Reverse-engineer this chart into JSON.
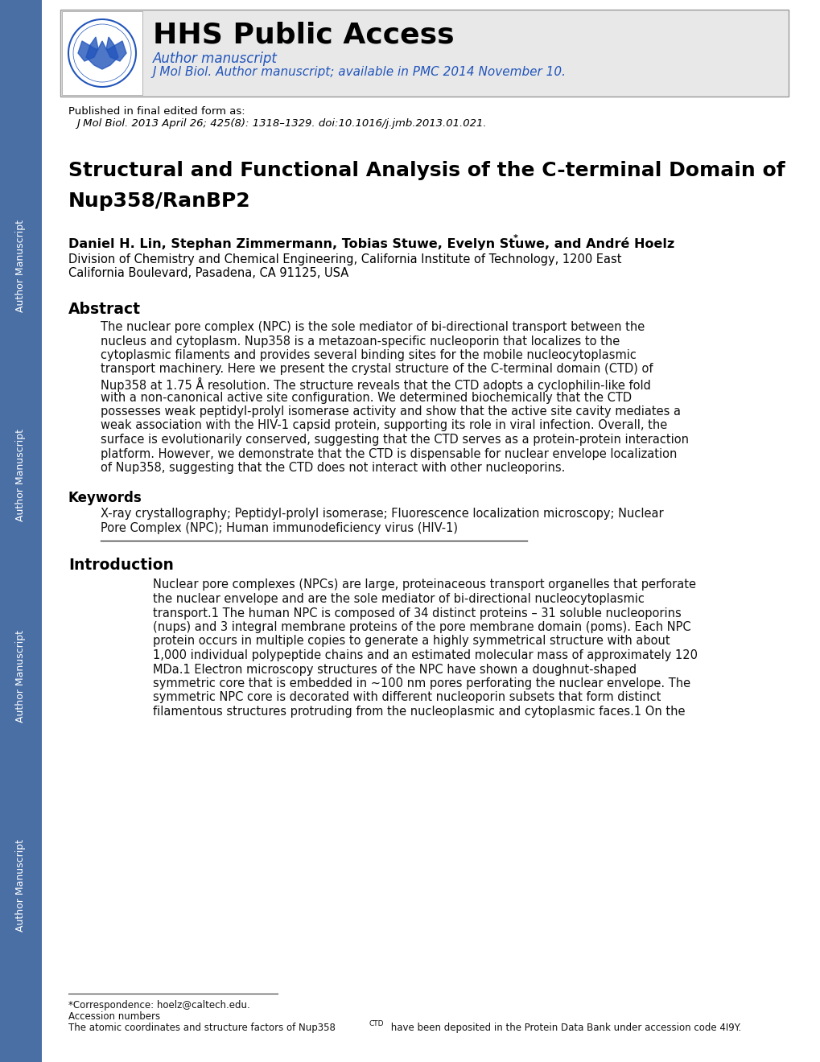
{
  "page_bg": "#ffffff",
  "left_bar_color": "#4a6fa5",
  "header_bg": "#e8e8e8",
  "header_border_color": "#999999",
  "header_title": "HHS Public Access",
  "header_subtitle": "Author manuscript",
  "header_journal_line": "J Mol Biol. Author manuscript; available in PMC 2014 November 10.",
  "header_title_color": "#000000",
  "header_subtitle_color": "#2255bb",
  "header_journal_color": "#2255bb",
  "published_line1": "Published in final edited form as:",
  "published_line2": "J Mol Biol. 2013 April 26; 425(8): 1318–1329. doi:10.1016/j.jmb.2013.01.021.",
  "title_line1": "Structural and Functional Analysis of the C-terminal Domain of",
  "title_line2": "Nup358/RanBP2",
  "authors": "Daniel H. Lin, Stephan Zimmermann, Tobias Stuwe, Evelyn Stuwe, and André Hoelz",
  "affil1": "Division of Chemistry and Chemical Engineering, California Institute of Technology, 1200 East",
  "affil2": "California Boulevard, Pasadena, CA 91125, USA",
  "abstract_title": "Abstract",
  "abstract_lines": [
    "The nuclear pore complex (NPC) is the sole mediator of bi-directional transport between the",
    "nucleus and cytoplasm. Nup358 is a metazoan-specific nucleoporin that localizes to the",
    "cytoplasmic filaments and provides several binding sites for the mobile nucleocytoplasmic",
    "transport machinery. Here we present the crystal structure of the C-terminal domain (CTD) of",
    "Nup358 at 1.75 Å resolution. The structure reveals that the CTD adopts a cyclophilin-like fold",
    "with a non-canonical active site configuration. We determined biochemically that the CTD",
    "possesses weak peptidyl-prolyl isomerase activity and show that the active site cavity mediates a",
    "weak association with the HIV-1 capsid protein, supporting its role in viral infection. Overall, the",
    "surface is evolutionarily conserved, suggesting that the CTD serves as a protein-protein interaction",
    "platform. However, we demonstrate that the CTD is dispensable for nuclear envelope localization",
    "of Nup358, suggesting that the CTD does not interact with other nucleoporins."
  ],
  "keywords_title": "Keywords",
  "keywords_lines": [
    "X-ray crystallography; Peptidyl-prolyl isomerase; Fluorescence localization microscopy; Nuclear",
    "Pore Complex (NPC); Human immunodeficiency virus (HIV-1)"
  ],
  "intro_title": "Introduction",
  "intro_lines": [
    "Nuclear pore complexes (NPCs) are large, proteinaceous transport organelles that perforate",
    "the nuclear envelope and are the sole mediator of bi-directional nucleocytoplasmic",
    "transport.1 The human NPC is composed of 34 distinct proteins – 31 soluble nucleoporins",
    "(nups) and 3 integral membrane proteins of the pore membrane domain (poms). Each NPC",
    "protein occurs in multiple copies to generate a highly symmetrical structure with about",
    "1,000 individual polypeptide chains and an estimated molecular mass of approximately 120",
    "MDa.1 Electron microscopy structures of the NPC have shown a doughnut-shaped",
    "symmetric core that is embedded in ~100 nm pores perforating the nuclear envelope. The",
    "symmetric NPC core is decorated with different nucleoporin subsets that form distinct",
    "filamentous structures protruding from the nucleoplasmic and cytoplasmic faces.1 On the"
  ],
  "footnote_corr": "*Correspondence: hoelz@caltech.edu.",
  "footnote_acc": "Accession numbers",
  "footnote_struct1": "The atomic coordinates and structure factors of Nup358",
  "footnote_struct2": "CTD",
  "footnote_struct3": " have been deposited in the Protein Data Bank under accession code 4I9Y.",
  "am_label": "Author Manuscript"
}
